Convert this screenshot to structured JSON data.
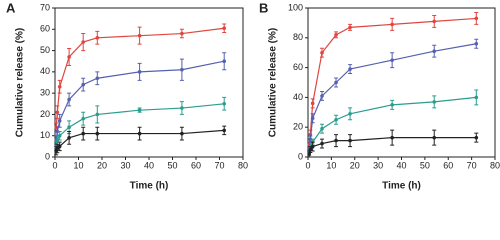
{
  "chart_data": [
    {
      "type": "line",
      "panel": "A",
      "xlabel": "Time (h)",
      "ylabel": "Cumulative release (%)",
      "x": [
        0.5,
        1,
        2,
        6,
        12,
        18,
        36,
        54,
        72
      ],
      "xlim": [
        0,
        80
      ],
      "xticks": [
        0,
        10,
        20,
        30,
        40,
        50,
        60,
        70,
        80
      ],
      "ylim": [
        0,
        70
      ],
      "yticks": [
        0,
        10,
        20,
        30,
        40,
        50,
        60,
        70
      ],
      "series": [
        {
          "color": "#e0463f",
          "values": [
            14,
            21,
            33,
            47,
            54,
            56,
            57,
            58,
            60.5
          ],
          "errors": [
            2,
            3,
            3,
            4,
            4,
            3,
            4,
            2,
            2
          ]
        },
        {
          "color": "#5560b0",
          "values": [
            8,
            12,
            17,
            27,
            34,
            37,
            40,
            41,
            45
          ],
          "errors": [
            2,
            2,
            3,
            3,
            3,
            3,
            4,
            5,
            4
          ]
        },
        {
          "color": "#2a9d8f",
          "values": [
            5,
            8,
            10,
            14,
            18,
            20,
            22,
            23,
            25
          ],
          "errors": [
            2,
            2,
            2,
            3,
            3,
            4,
            1,
            3,
            3
          ]
        },
        {
          "color": "#222222",
          "values": [
            3,
            4,
            5,
            9,
            11,
            11,
            11,
            11,
            12.5
          ],
          "errors": [
            2,
            2,
            2,
            3,
            3,
            3,
            3,
            3,
            2
          ]
        }
      ]
    },
    {
      "type": "line",
      "panel": "B",
      "xlabel": "Time (h)",
      "ylabel": "Cumulative release (%)",
      "x": [
        0.5,
        1,
        2,
        6,
        12,
        18,
        36,
        54,
        72
      ],
      "xlim": [
        0,
        80
      ],
      "xticks": [
        0,
        10,
        20,
        30,
        40,
        50,
        60,
        70,
        80
      ],
      "ylim": [
        0,
        100
      ],
      "yticks": [
        0,
        20,
        40,
        60,
        80,
        100
      ],
      "series": [
        {
          "color": "#e0463f",
          "values": [
            8,
            15,
            36,
            70,
            82,
            87,
            89,
            91,
            93
          ],
          "errors": [
            2,
            3,
            3,
            3,
            2,
            2,
            4,
            4,
            4
          ]
        },
        {
          "color": "#5560b0",
          "values": [
            5,
            12,
            26,
            41,
            50,
            59,
            65,
            71,
            76
          ],
          "errors": [
            2,
            2,
            3,
            3,
            3,
            3,
            5,
            4,
            3
          ]
        },
        {
          "color": "#2a9d8f",
          "values": [
            3,
            7,
            10,
            19,
            25,
            29,
            35,
            37,
            40
          ],
          "errors": [
            2,
            2,
            2,
            3,
            3,
            4,
            3,
            4,
            5
          ]
        },
        {
          "color": "#222222",
          "values": [
            2,
            5,
            7,
            9,
            11,
            11,
            13,
            13,
            13
          ],
          "errors": [
            2,
            2,
            3,
            3,
            4,
            4,
            5,
            5,
            3
          ]
        }
      ]
    }
  ]
}
